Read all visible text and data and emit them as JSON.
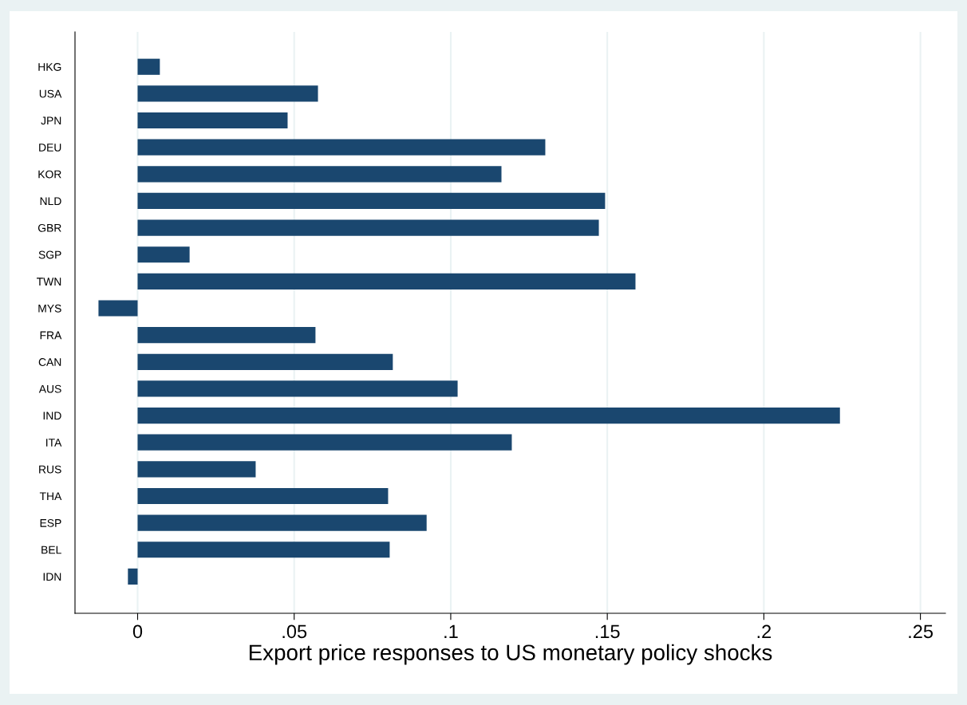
{
  "chart_data": {
    "type": "bar",
    "orientation": "horizontal",
    "xlabel": "Export price responses to US monetary policy shocks",
    "categories": [
      "HKG",
      "USA",
      "JPN",
      "DEU",
      "KOR",
      "NLD",
      "GBR",
      "SGP",
      "TWN",
      "MYS",
      "FRA",
      "CAN",
      "AUS",
      "IND",
      "ITA",
      "RUS",
      "THA",
      "ESP",
      "BEL",
      "IDN"
    ],
    "values": [
      0.0071,
      0.0576,
      0.0479,
      0.1302,
      0.1162,
      0.1493,
      0.1473,
      0.0166,
      0.159,
      -0.0125,
      0.0568,
      0.0815,
      0.1022,
      0.2243,
      0.1195,
      0.0377,
      0.08,
      0.0923,
      0.0805,
      -0.0031
    ],
    "color": "#1a476f",
    "xlim": [
      -0.02,
      0.258
    ],
    "xticks": [
      0,
      {
        "value": 0.05,
        "label": ".05"
      },
      {
        "value": 0.1,
        "label": ".1"
      },
      {
        "value": 0.15,
        "label": ".15"
      },
      {
        "value": 0.2,
        "label": ".2"
      },
      {
        "value": 0.25,
        "label": ".25"
      }
    ],
    "grid": "x"
  }
}
